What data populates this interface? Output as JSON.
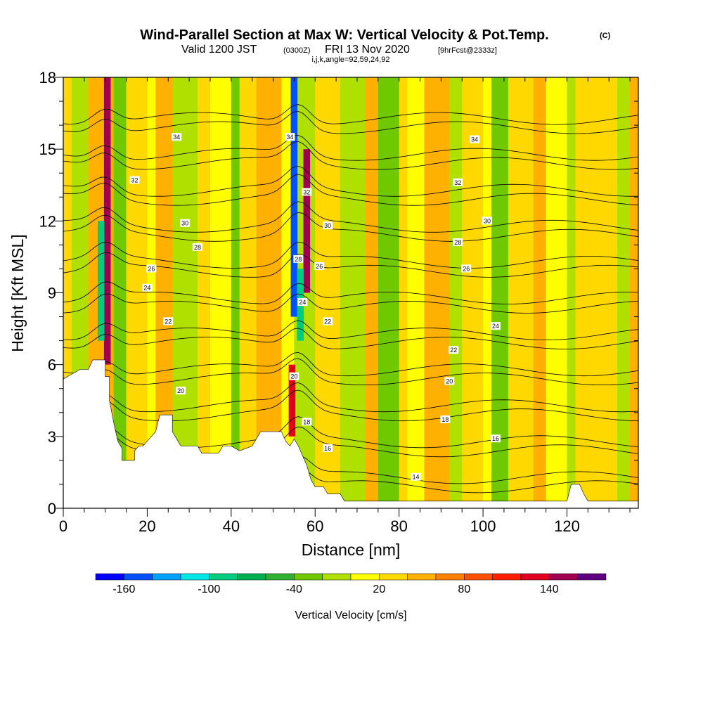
{
  "header": {
    "title": "Wind-Parallel Section at Max W: Vertical Velocity & Pot.Temp.",
    "copyright": "(C)",
    "sub_valid": "Valid 1200 JST",
    "sub_utc": "(0300Z)",
    "sub_date": "FRI 13 Nov 2020",
    "sub_fcst": "[9hrFcst@2333z]",
    "ijk": "i,j,k,angle=92,59,24,92"
  },
  "colors": {
    "scale": [
      "#0000ff",
      "#0050ff",
      "#00a0ff",
      "#00e6e6",
      "#00cc80",
      "#00b050",
      "#30b030",
      "#70c800",
      "#b0e000",
      "#ffff00",
      "#ffd800",
      "#ffb000",
      "#ff8000",
      "#ff5000",
      "#ff2000",
      "#e00020",
      "#a00050",
      "#600080"
    ]
  },
  "chart_data": {
    "type": "heatmap",
    "x": {
      "label": "Distance [nm]",
      "range": [
        0,
        137
      ],
      "ticks": [
        "0",
        "20",
        "40",
        "60",
        "80",
        "100",
        "120"
      ],
      "tick_values": [
        0,
        20,
        40,
        60,
        80,
        100,
        120
      ]
    },
    "y": {
      "label": "Height [Kft MSL]",
      "range": [
        0,
        18
      ],
      "ticks": [
        "0",
        "3",
        "6",
        "9",
        "12",
        "15",
        "18"
      ],
      "tick_values": [
        0,
        3,
        6,
        9,
        12,
        15,
        18
      ]
    },
    "colorbar": {
      "label": "Vertical Velocity [cm/s]",
      "range": [
        -180,
        180
      ],
      "tick_labels": [
        "-160",
        "-100",
        "-40",
        "20",
        "80",
        "140"
      ],
      "tick_values": [
        -160,
        -100,
        -40,
        20,
        80,
        140
      ]
    },
    "terrain_kft": [
      [
        0,
        5.4
      ],
      [
        2,
        5.6
      ],
      [
        4,
        5.8
      ],
      [
        6,
        5.8
      ],
      [
        7,
        6.2
      ],
      [
        10,
        6.2
      ],
      [
        10,
        5.5
      ],
      [
        11,
        5.5
      ],
      [
        11,
        4.5
      ],
      [
        12,
        3.6
      ],
      [
        13,
        2.8
      ],
      [
        14,
        2.5
      ],
      [
        14,
        2.0
      ],
      [
        17,
        2.0
      ],
      [
        17,
        2.4
      ],
      [
        18,
        2.6
      ],
      [
        19,
        2.6
      ],
      [
        20,
        2.8
      ],
      [
        21,
        3.0
      ],
      [
        22,
        3.2
      ],
      [
        23,
        3.9
      ],
      [
        26,
        3.9
      ],
      [
        26,
        3.2
      ],
      [
        27,
        2.9
      ],
      [
        28,
        2.6
      ],
      [
        30,
        2.6
      ],
      [
        32,
        2.6
      ],
      [
        33,
        2.3
      ],
      [
        37,
        2.3
      ],
      [
        38,
        2.6
      ],
      [
        40,
        2.6
      ],
      [
        42,
        2.4
      ],
      [
        45,
        2.6
      ],
      [
        46,
        2.9
      ],
      [
        47,
        3.2
      ],
      [
        52,
        3.2
      ],
      [
        53,
        2.8
      ],
      [
        54,
        2.6
      ],
      [
        55,
        2.9
      ],
      [
        56,
        2.6
      ],
      [
        57,
        2.2
      ],
      [
        58,
        1.8
      ],
      [
        59,
        1.2
      ],
      [
        60,
        0.9
      ],
      [
        62,
        0.9
      ],
      [
        63,
        0.6
      ],
      [
        66,
        0.6
      ],
      [
        67,
        0.3
      ],
      [
        70,
        0.3
      ],
      [
        71,
        0.3
      ],
      [
        120,
        0.3
      ],
      [
        121,
        1.0
      ],
      [
        123,
        1.0
      ],
      [
        124,
        0.6
      ],
      [
        125,
        0.3
      ],
      [
        137,
        0.3
      ]
    ],
    "updraft_columns": [
      {
        "x": 10.5,
        "velocity": 140,
        "top_kft": 18,
        "bottom_kft": 6
      },
      {
        "x": 9.0,
        "velocity": -100,
        "top_kft": 12,
        "bottom_kft": 7
      },
      {
        "x": 55.0,
        "velocity": -160,
        "top_kft": 18,
        "bottom_kft": 8
      },
      {
        "x": 58.0,
        "velocity": 140,
        "top_kft": 15,
        "bottom_kft": 9
      },
      {
        "x": 54.5,
        "velocity": 120,
        "top_kft": 6,
        "bottom_kft": 3
      },
      {
        "x": 56.5,
        "velocity": -100,
        "top_kft": 10,
        "bottom_kft": 7
      }
    ],
    "isentropes": {
      "unit": "C",
      "values": [
        14,
        16,
        18,
        20,
        22,
        24,
        26,
        28,
        30,
        32,
        34
      ],
      "labels": [
        "14",
        "16",
        "18",
        "20",
        "22",
        "24",
        "26",
        "28",
        "30",
        "32",
        "34"
      ],
      "label_positions_data": [
        {
          "v": "34",
          "x": 27,
          "y": 15.5
        },
        {
          "v": "32",
          "x": 17,
          "y": 13.7
        },
        {
          "v": "30",
          "x": 29,
          "y": 11.9
        },
        {
          "v": "28",
          "x": 32,
          "y": 10.9
        },
        {
          "v": "26",
          "x": 21,
          "y": 10.0
        },
        {
          "v": "24",
          "x": 20,
          "y": 9.2
        },
        {
          "v": "22",
          "x": 25,
          "y": 7.8
        },
        {
          "v": "20",
          "x": 28,
          "y": 4.9
        },
        {
          "v": "34",
          "x": 54,
          "y": 15.5
        },
        {
          "v": "32",
          "x": 58,
          "y": 13.2
        },
        {
          "v": "30",
          "x": 63,
          "y": 11.8
        },
        {
          "v": "28",
          "x": 56,
          "y": 10.4
        },
        {
          "v": "26",
          "x": 61,
          "y": 10.1
        },
        {
          "v": "24",
          "x": 57,
          "y": 8.6
        },
        {
          "v": "22",
          "x": 63,
          "y": 7.8
        },
        {
          "v": "20",
          "x": 55,
          "y": 5.5
        },
        {
          "v": "18",
          "x": 58,
          "y": 3.6
        },
        {
          "v": "16",
          "x": 63,
          "y": 2.5
        },
        {
          "v": "34",
          "x": 98,
          "y": 15.4
        },
        {
          "v": "32",
          "x": 94,
          "y": 13.6
        },
        {
          "v": "30",
          "x": 101,
          "y": 12.0
        },
        {
          "v": "28",
          "x": 94,
          "y": 11.1
        },
        {
          "v": "26",
          "x": 96,
          "y": 10.0
        },
        {
          "v": "24",
          "x": 103,
          "y": 7.6
        },
        {
          "v": "22",
          "x": 93,
          "y": 6.6
        },
        {
          "v": "20",
          "x": 92,
          "y": 5.3
        },
        {
          "v": "18",
          "x": 91,
          "y": 3.7
        },
        {
          "v": "16",
          "x": 103,
          "y": 2.9
        },
        {
          "v": "14",
          "x": 84,
          "y": 1.3
        }
      ]
    }
  }
}
